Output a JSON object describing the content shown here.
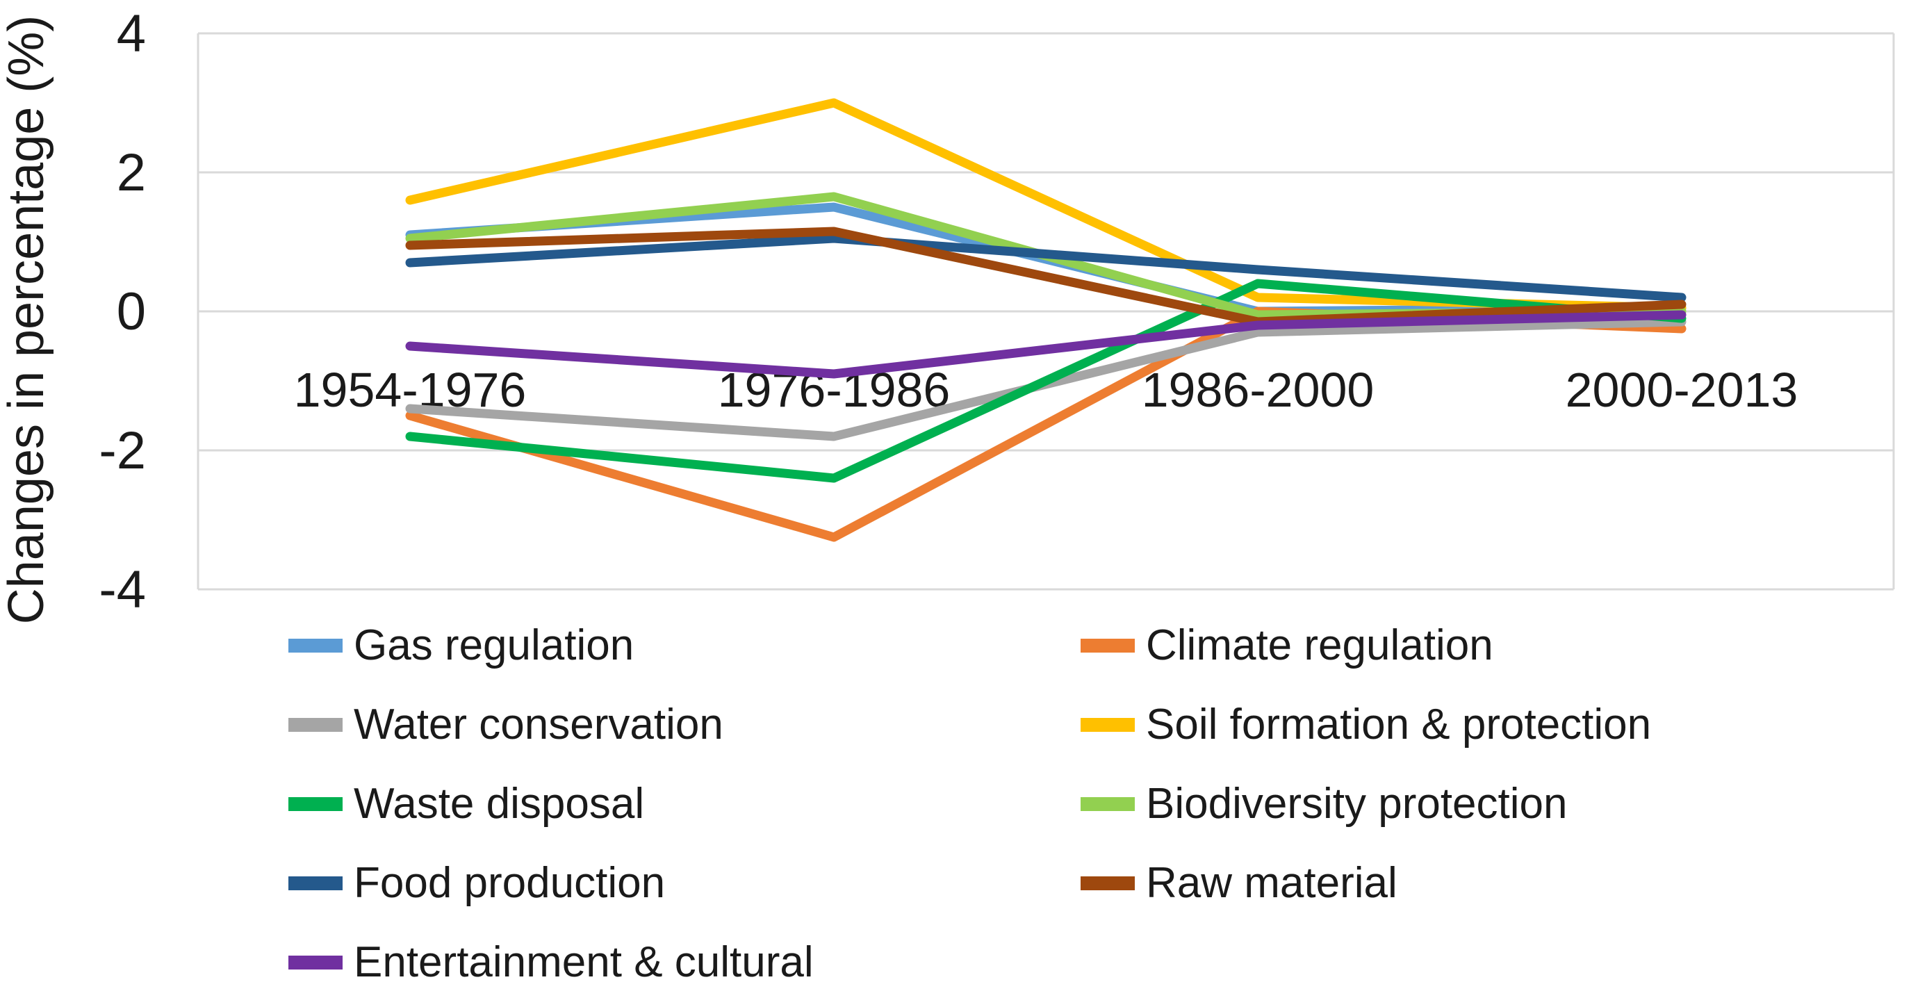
{
  "figure": {
    "background": "#ffffff",
    "text_color": "#1a1a1a",
    "grid_color": "#d9d9d9"
  },
  "chart_data": {
    "type": "line",
    "title": "",
    "xlabel": "",
    "ylabel": "Changes in percentage (%)",
    "ylim": [
      -4,
      4
    ],
    "y_ticks": [
      4,
      2,
      0,
      -2,
      -4
    ],
    "grid": true,
    "legend_position": "bottom, two columns",
    "categories": [
      "1954-1976",
      "1976-1986",
      "1986-2000",
      "2000-2013"
    ],
    "series": [
      {
        "name": "Gas regulation",
        "color": "#5B9BD5",
        "values": [
          1.1,
          1.5,
          0.0,
          0.05
        ]
      },
      {
        "name": "Climate regulation",
        "color": "#ED7D31",
        "values": [
          -1.5,
          -3.25,
          0.0,
          -0.25
        ]
      },
      {
        "name": "Water conservation",
        "color": "#A5A5A5",
        "values": [
          -1.4,
          -1.8,
          -0.3,
          -0.15
        ]
      },
      {
        "name": "Soil formation & protection",
        "color": "#FFC000",
        "values": [
          1.6,
          3.0,
          0.2,
          0.05
        ]
      },
      {
        "name": "Waste disposal",
        "color": "#00B050",
        "values": [
          -1.8,
          -2.4,
          0.4,
          -0.1
        ]
      },
      {
        "name": "Biodiversity protection",
        "color": "#92D050",
        "values": [
          1.05,
          1.65,
          -0.05,
          0.0
        ]
      },
      {
        "name": "Food production",
        "color": "#24598C",
        "values": [
          0.7,
          1.05,
          0.6,
          0.2
        ]
      },
      {
        "name": "Raw material",
        "color": "#9E480E",
        "values": [
          0.95,
          1.15,
          -0.15,
          0.1
        ]
      },
      {
        "name": "Entertainment & cultural",
        "color": "#7030A0",
        "values": [
          -0.5,
          -0.9,
          -0.2,
          -0.05
        ]
      }
    ]
  }
}
